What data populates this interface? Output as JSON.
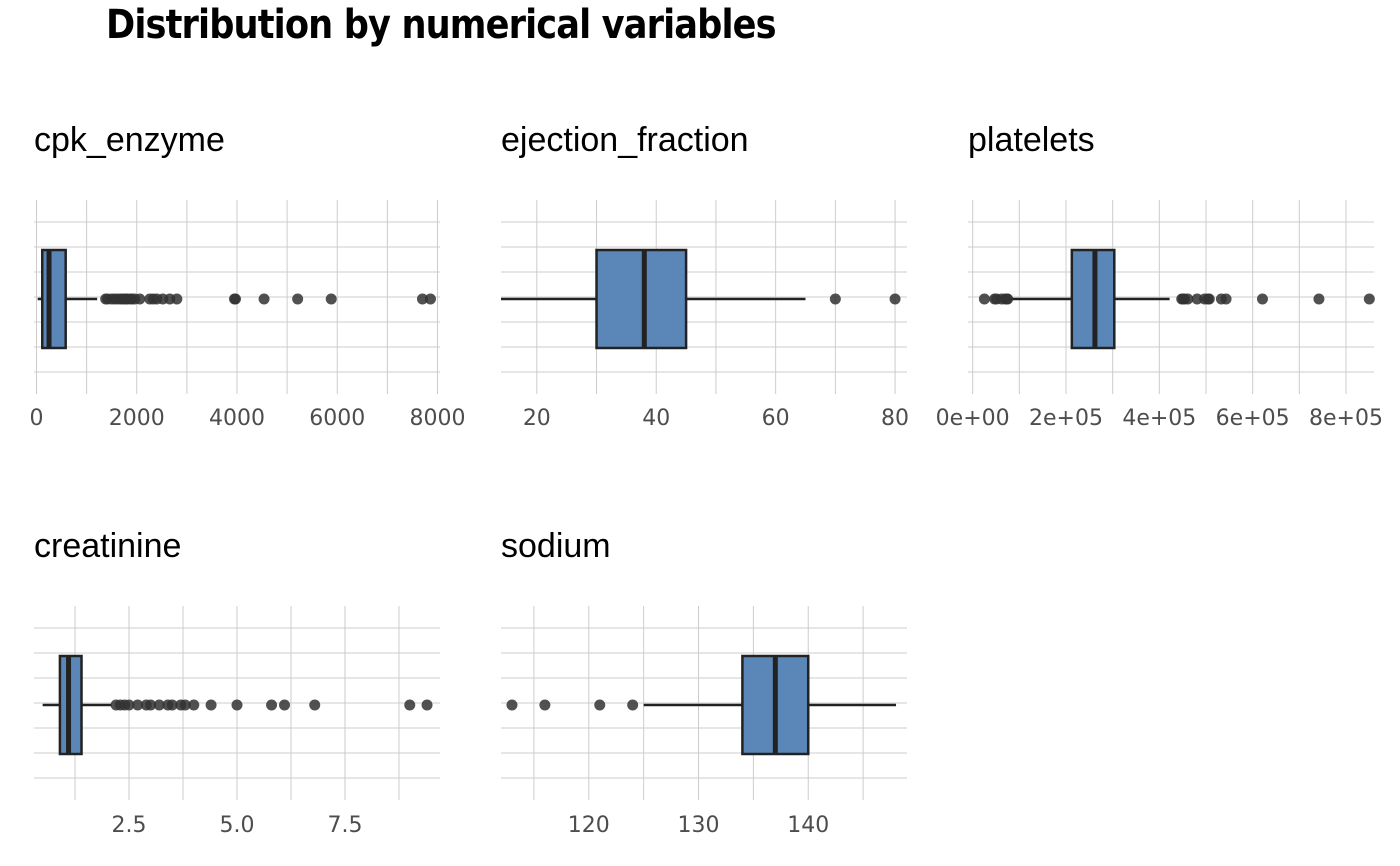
{
  "title": "Distribution by numerical variables",
  "colors": {
    "box_fill": "#5b87b8",
    "line": "#222222",
    "outlier": "#333333",
    "grid": "#cccccc"
  },
  "chart_data": [
    {
      "type": "boxplot",
      "title": "cpk_enzyme",
      "xlim": [
        -50,
        8050
      ],
      "ticks": [
        0,
        2000,
        4000,
        6000,
        8000
      ],
      "tick_labels": [
        "0",
        "2000",
        "4000",
        "6000",
        "8000"
      ],
      "minor_ticks": [
        1000,
        3000,
        5000,
        7000
      ],
      "box": {
        "whisker_low": 23,
        "q1": 115,
        "median": 250,
        "q3": 582,
        "whisker_high": 1210
      },
      "outliers": [
        1380,
        1420,
        1500,
        1560,
        1620,
        1680,
        1720,
        1760,
        1800,
        1820,
        1880,
        1900,
        1960,
        2060,
        2260,
        2330,
        2400,
        2520,
        2660,
        2800,
        3950,
        3970,
        4540,
        5210,
        5880,
        7700,
        7860
      ]
    },
    {
      "type": "boxplot",
      "title": "ejection_fraction",
      "xlim": [
        14,
        82
      ],
      "ticks": [
        20,
        40,
        60,
        80
      ],
      "tick_labels": [
        "20",
        "40",
        "60",
        "80"
      ],
      "minor_ticks": [
        30,
        50,
        70
      ],
      "box": {
        "whisker_low": 14,
        "q1": 30,
        "median": 38,
        "q3": 45,
        "whisker_high": 65
      },
      "outliers": [
        70,
        80
      ]
    },
    {
      "type": "boxplot",
      "title": "platelets",
      "xlim": [
        -10000,
        860000
      ],
      "ticks": [
        0,
        200000,
        400000,
        600000,
        800000
      ],
      "tick_labels": [
        "0e+00",
        "2e+05",
        "4e+05",
        "6e+05",
        "8e+05"
      ],
      "minor_ticks": [
        100000,
        300000,
        500000,
        700000
      ],
      "box": {
        "whisker_low": 76000,
        "q1": 212500,
        "median": 262000,
        "q3": 303500,
        "whisker_high": 422000
      },
      "outliers": [
        25100,
        47000,
        51000,
        62000,
        70000,
        73000,
        75000,
        448000,
        451000,
        454000,
        461000,
        481000,
        497000,
        504000,
        507000,
        533000,
        543000,
        621000,
        742000,
        850000
      ]
    },
    {
      "type": "boxplot",
      "title": "creatinine",
      "xlim": [
        0.3,
        9.7
      ],
      "ticks": [
        2.5,
        5.0,
        7.5
      ],
      "tick_labels": [
        "2.5",
        "5.0",
        "7.5"
      ],
      "minor_ticks": [
        1.25,
        3.75,
        6.25,
        8.75
      ],
      "box": {
        "whisker_low": 0.5,
        "q1": 0.9,
        "median": 1.1,
        "q3": 1.4,
        "whisker_high": 2.1
      },
      "outliers": [
        2.2,
        2.3,
        2.4,
        2.5,
        2.7,
        2.9,
        3.0,
        3.2,
        3.4,
        3.5,
        3.7,
        3.8,
        4.0,
        4.4,
        5.0,
        5.8,
        6.1,
        6.8,
        9.0,
        9.4
      ]
    },
    {
      "type": "boxplot",
      "title": "sodium",
      "xlim": [
        112,
        149
      ],
      "ticks": [
        120,
        130,
        140
      ],
      "tick_labels": [
        "120",
        "130",
        "140"
      ],
      "minor_ticks": [
        115,
        125,
        135,
        145
      ],
      "box": {
        "whisker_low": 125,
        "q1": 134,
        "median": 137,
        "q3": 140,
        "whisker_high": 148
      },
      "outliers": [
        113,
        116,
        121,
        124
      ]
    }
  ]
}
